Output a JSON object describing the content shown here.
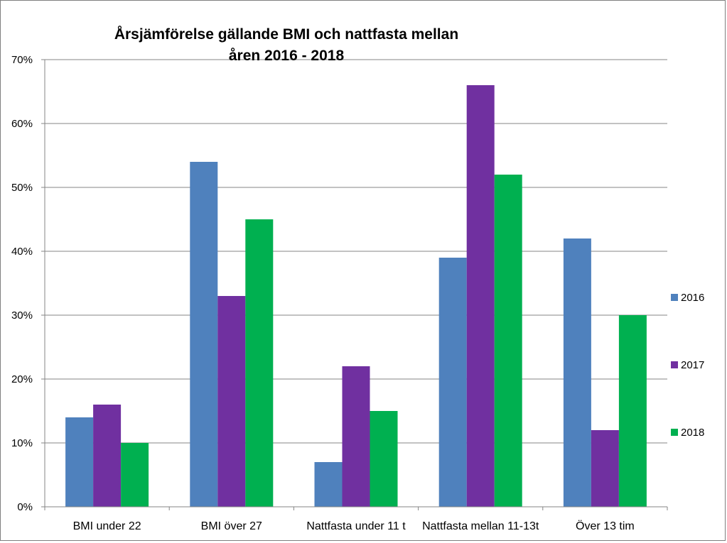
{
  "chart_data": {
    "type": "bar",
    "title": "Årsjämförelse gällande BMI och nattfasta mellan åren 2016 - 2018",
    "title_lines": [
      "Årsjämförelse gällande BMI och nattfasta mellan",
      "åren 2016 - 2018"
    ],
    "categories": [
      "BMI under 22",
      "BMI över 27",
      "Nattfasta under 11 t",
      "Nattfasta mellan 11-13t",
      "Över 13 tim"
    ],
    "series": [
      {
        "name": "2016",
        "color": "#4f81bd",
        "values": [
          14,
          54,
          7,
          39,
          42
        ]
      },
      {
        "name": "2017",
        "color": "#7030a0",
        "values": [
          16,
          33,
          22,
          66,
          12
        ]
      },
      {
        "name": "2018",
        "color": "#00b050",
        "values": [
          10,
          45,
          15,
          52,
          30
        ]
      }
    ],
    "yticks": [
      "0%",
      "10%",
      "20%",
      "30%",
      "40%",
      "50%",
      "60%",
      "70%"
    ],
    "ylim": [
      0,
      70
    ],
    "ytick_step": 10,
    "xlabel": "",
    "ylabel": "",
    "grid": true,
    "legend_position": "right"
  }
}
